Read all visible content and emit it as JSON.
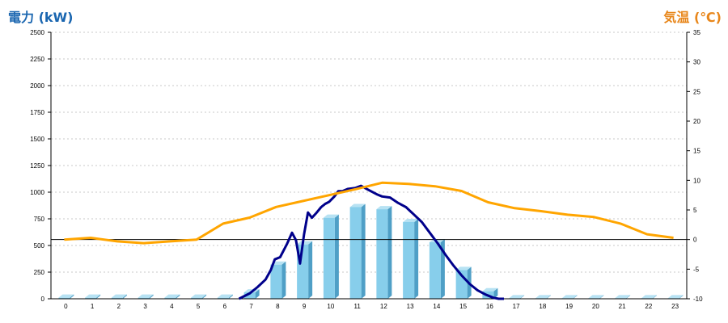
{
  "chart_data": {
    "type": "bar",
    "left_axis": {
      "title": "電力 (kW)",
      "range": [
        0,
        2500
      ],
      "ticks": [
        "0",
        "250",
        "500",
        "750",
        "1000",
        "1250",
        "1500",
        "1750",
        "2000",
        "2250",
        "2500"
      ]
    },
    "right_axis": {
      "title": "気温 (℃)",
      "range": [
        -10,
        35
      ],
      "ticks": [
        "-10",
        "-5",
        "0",
        "5",
        "10",
        "15",
        "20",
        "25",
        "30",
        "35"
      ]
    },
    "categories": [
      "0",
      "1",
      "2",
      "3",
      "4",
      "5",
      "6",
      "7",
      "8",
      "9",
      "10",
      "11",
      "12",
      "13",
      "14",
      "15",
      "16",
      "17",
      "18",
      "19",
      "20",
      "21",
      "22",
      "23"
    ],
    "grid": "horizontal-dashed",
    "series": [
      {
        "kind": "bar",
        "axis": "left",
        "values": [
          10,
          10,
          10,
          10,
          10,
          10,
          10,
          60,
          320,
          510,
          760,
          860,
          840,
          720,
          530,
          270,
          70,
          5,
          5,
          5,
          5,
          5,
          5,
          5
        ]
      },
      {
        "kind": "line",
        "axis": "left",
        "x": [
          6.6,
          7.0,
          7.3,
          7.6,
          7.8,
          7.95,
          8.15,
          8.4,
          8.6,
          8.75,
          8.9,
          9.05,
          9.2,
          9.35,
          9.5,
          9.7,
          9.85,
          10.0,
          10.2,
          10.35,
          10.5,
          10.7,
          11.0,
          11.2,
          11.5,
          11.8,
          12.0,
          12.3,
          12.6,
          12.9,
          13.2,
          13.5,
          13.8,
          14.1,
          14.4,
          14.7,
          15.0,
          15.3,
          15.6,
          15.9,
          16.2,
          16.4,
          16.6
        ],
        "y": [
          0,
          50,
          110,
          180,
          270,
          370,
          390,
          510,
          620,
          550,
          330,
          600,
          810,
          760,
          800,
          860,
          890,
          910,
          960,
          1010,
          1010,
          1030,
          1040,
          1060,
          1020,
          980,
          960,
          950,
          900,
          860,
          790,
          720,
          620,
          520,
          410,
          310,
          220,
          140,
          80,
          40,
          10,
          0,
          0
        ]
      },
      {
        "kind": "line",
        "axis": "right",
        "x": [
          0,
          1,
          2,
          3,
          4,
          5,
          6,
          7,
          8,
          9,
          10,
          11,
          12,
          13,
          14,
          15,
          16,
          17,
          18,
          19,
          20,
          21,
          22,
          23
        ],
        "y": [
          0,
          0.3,
          -0.3,
          -0.6,
          -0.3,
          0,
          2.7,
          3.7,
          5.5,
          6.5,
          7.5,
          8.5,
          9.6,
          9.4,
          9.0,
          8.2,
          6.3,
          5.3,
          4.8,
          4.2,
          3.8,
          2.7,
          0.9,
          0.3
        ]
      }
    ],
    "colors": {
      "left_title": "#1a66b0",
      "right_title": "#e8861a",
      "bar_face": "#87ceeb",
      "bar_side": "#4f9fc6",
      "bar_top": "#b7e2f3",
      "power_line": "#00008b",
      "temperature_line": "#ffa500",
      "grid": "#c8c8c8"
    }
  }
}
